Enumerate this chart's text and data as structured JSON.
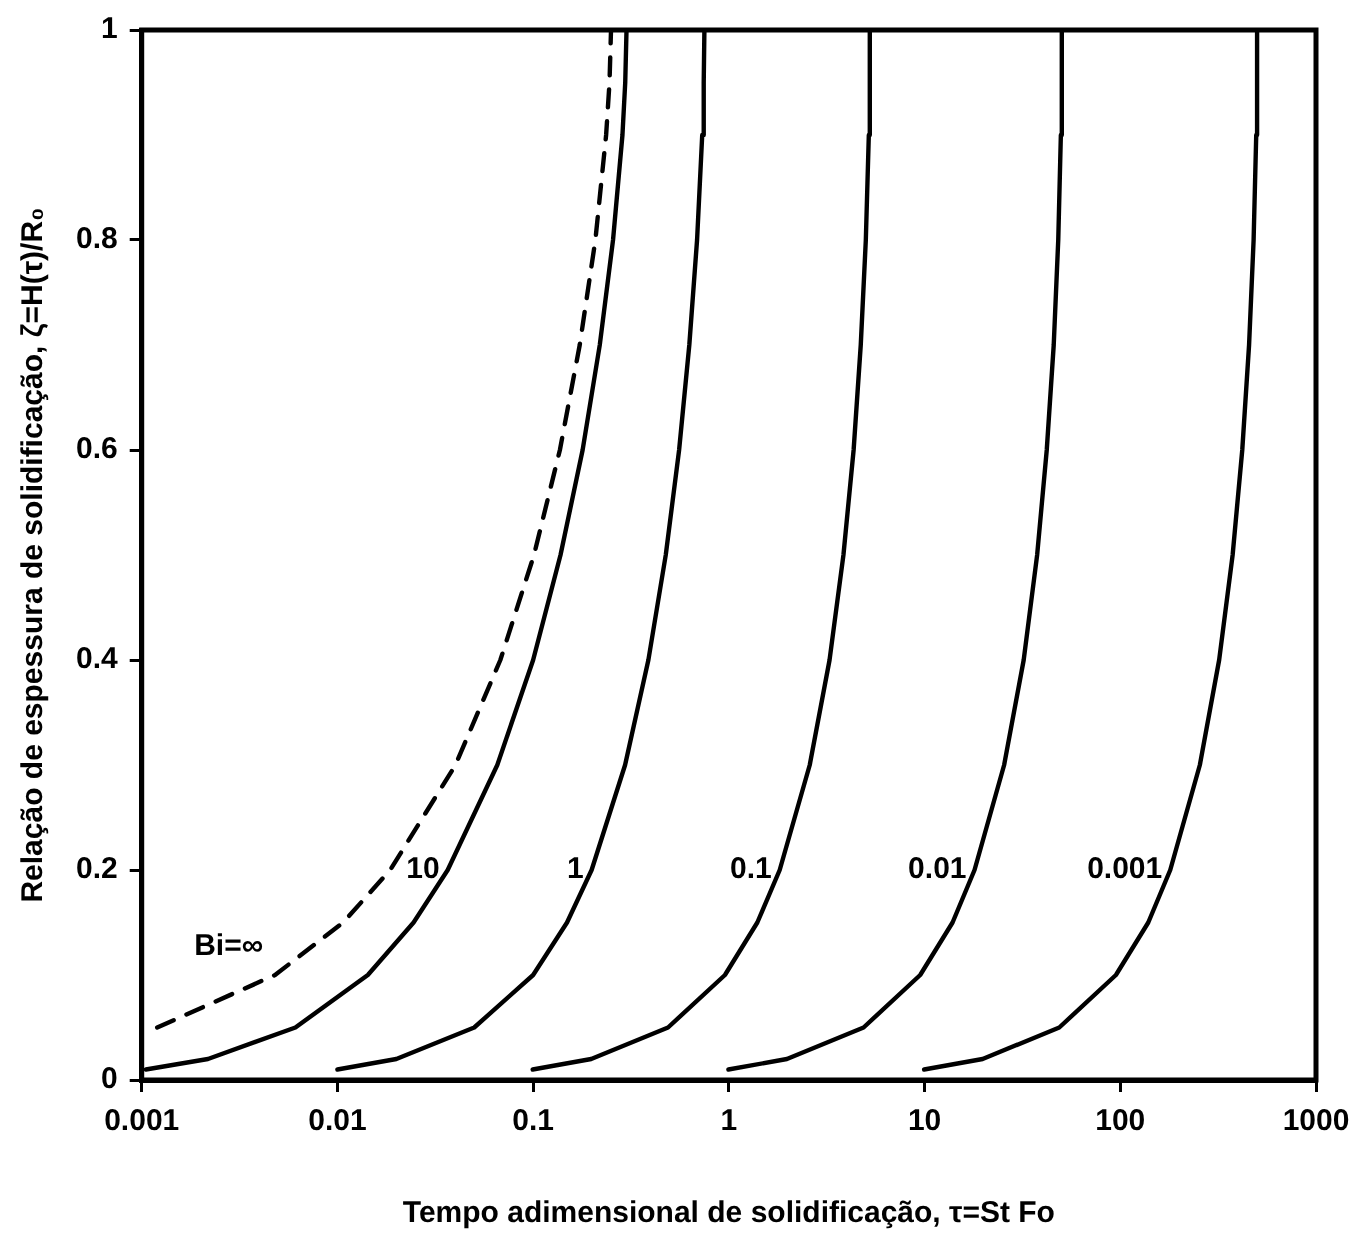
{
  "chart_data": {
    "type": "line",
    "xlabel": "Tempo adimensional de solidificação, τ=St Fo",
    "ylabel": "Relação de espessura de solidificação, ζ=H(τ)/R₀",
    "log": "x",
    "xlim": [
      0.001,
      1000
    ],
    "xticks": [
      0.001,
      0.01,
      0.1,
      1,
      10,
      100,
      1000
    ],
    "ylim": [
      0,
      1
    ],
    "yticks": [
      0,
      0.2,
      0.4,
      0.6,
      0.8,
      1
    ],
    "grid": false,
    "legend": false,
    "marker": "none",
    "series": [
      {
        "name": "Bi=∞",
        "color": "#000000",
        "line_style": "dashed",
        "x": [
          0.0012,
          0.0048,
          0.0107,
          0.0186,
          0.0401,
          0.068,
          0.101,
          0.137,
          0.173,
          0.208,
          0.236,
          0.2456,
          0.25
        ],
        "values": [
          0.05,
          0.1,
          0.15,
          0.2,
          0.3,
          0.4,
          0.5,
          0.6,
          0.7,
          0.8,
          0.9,
          0.95,
          1
        ]
      },
      {
        "name": "10",
        "color": "#000000",
        "line_style": "solid",
        "x": [
          0.00105,
          0.00218,
          0.0061,
          0.0143,
          0.0245,
          0.0366,
          0.0656,
          0.1,
          0.138,
          0.179,
          0.219,
          0.256,
          0.286,
          0.2955,
          0.3
        ],
        "values": [
          0.01,
          0.02,
          0.05,
          0.1,
          0.15,
          0.2,
          0.3,
          0.4,
          0.5,
          0.6,
          0.7,
          0.8,
          0.9,
          0.95,
          1
        ]
      },
      {
        "name": "1",
        "color": "#000000",
        "line_style": "solid",
        "x": [
          0.01,
          0.02,
          0.05,
          0.1,
          0.149,
          0.199,
          0.295,
          0.388,
          0.476,
          0.557,
          0.628,
          0.688,
          0.731,
          0.744,
          0.75
        ],
        "values": [
          0.01,
          0.02,
          0.05,
          0.1,
          0.15,
          0.2,
          0.3,
          0.4,
          0.5,
          0.6,
          0.7,
          0.8,
          0.9,
          0.95,
          1
        ]
      },
      {
        "name": "0.1",
        "color": "#000000",
        "line_style": "solid",
        "x": [
          0.0995,
          0.198,
          0.489,
          0.955,
          1.398,
          1.819,
          2.59,
          3.27,
          3.85,
          4.34,
          4.72,
          5.01,
          5.19,
          5.25
        ],
        "values": [
          0.01,
          0.02,
          0.05,
          0.1,
          0.15,
          0.2,
          0.3,
          0.4,
          0.5,
          0.6,
          0.7,
          0.8,
          0.9,
          1
        ]
      },
      {
        "name": "0.01",
        "color": "#000000",
        "line_style": "solid",
        "x": [
          0.995,
          1.98,
          4.88,
          9.5,
          13.9,
          18,
          25.5,
          32.1,
          37.6,
          42.1,
          45.7,
          48.2,
          49.7,
          50.25
        ],
        "values": [
          0.01,
          0.02,
          0.05,
          0.1,
          0.15,
          0.2,
          0.3,
          0.4,
          0.5,
          0.6,
          0.7,
          0.8,
          0.9,
          1
        ]
      },
      {
        "name": "0.001",
        "color": "#000000",
        "line_style": "solid",
        "x": [
          9.95,
          19.8,
          48.8,
          95,
          139,
          180,
          255,
          320,
          375,
          420,
          455,
          480,
          495,
          500
        ],
        "values": [
          0.01,
          0.02,
          0.05,
          0.1,
          0.15,
          0.2,
          0.3,
          0.4,
          0.5,
          0.6,
          0.7,
          0.8,
          0.9,
          1
        ]
      }
    ]
  }
}
